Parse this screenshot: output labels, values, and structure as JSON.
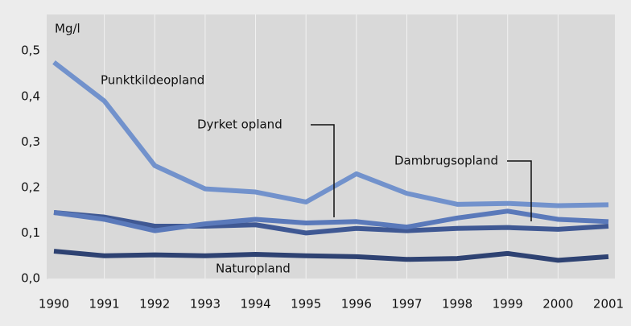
{
  "chart_data": {
    "type": "line",
    "y_axis_label": "Mg/l",
    "categories": [
      "1990",
      "1991",
      "1992",
      "1993",
      "1994",
      "1995",
      "1996",
      "1997",
      "1998",
      "1999",
      "2000",
      "2001"
    ],
    "series": [
      {
        "name": "Punktkildeopland",
        "color": "#7292cc",
        "values": [
          0.475,
          0.39,
          0.248,
          0.197,
          0.19,
          0.168,
          0.23,
          0.187,
          0.163,
          0.165,
          0.16,
          0.162
        ]
      },
      {
        "name": "Dyrket opland",
        "color": "#5a79ba",
        "values": [
          0.145,
          0.13,
          0.105,
          0.12,
          0.13,
          0.122,
          0.125,
          0.113,
          0.133,
          0.148,
          0.13,
          0.125
        ]
      },
      {
        "name": "Dambrugsopland",
        "color": "#3f5893",
        "values": [
          0.145,
          0.135,
          0.115,
          0.115,
          0.118,
          0.1,
          0.11,
          0.105,
          0.11,
          0.112,
          0.108,
          0.115
        ]
      },
      {
        "name": "Naturopland",
        "color": "#2e4272",
        "values": [
          0.06,
          0.05,
          0.052,
          0.05,
          0.053,
          0.05,
          0.048,
          0.042,
          0.044,
          0.055,
          0.04,
          0.048
        ]
      }
    ],
    "ylim": [
      0,
      0.58
    ],
    "yticks": [
      {
        "value": 0,
        "label": "0,0"
      },
      {
        "value": 0.1,
        "label": "0,1"
      },
      {
        "value": 0.2,
        "label": "0,2"
      },
      {
        "value": 0.3,
        "label": "0,3"
      },
      {
        "value": 0.4,
        "label": "0,4"
      },
      {
        "value": 0.5,
        "label": "0,5"
      }
    ],
    "grid": true
  }
}
